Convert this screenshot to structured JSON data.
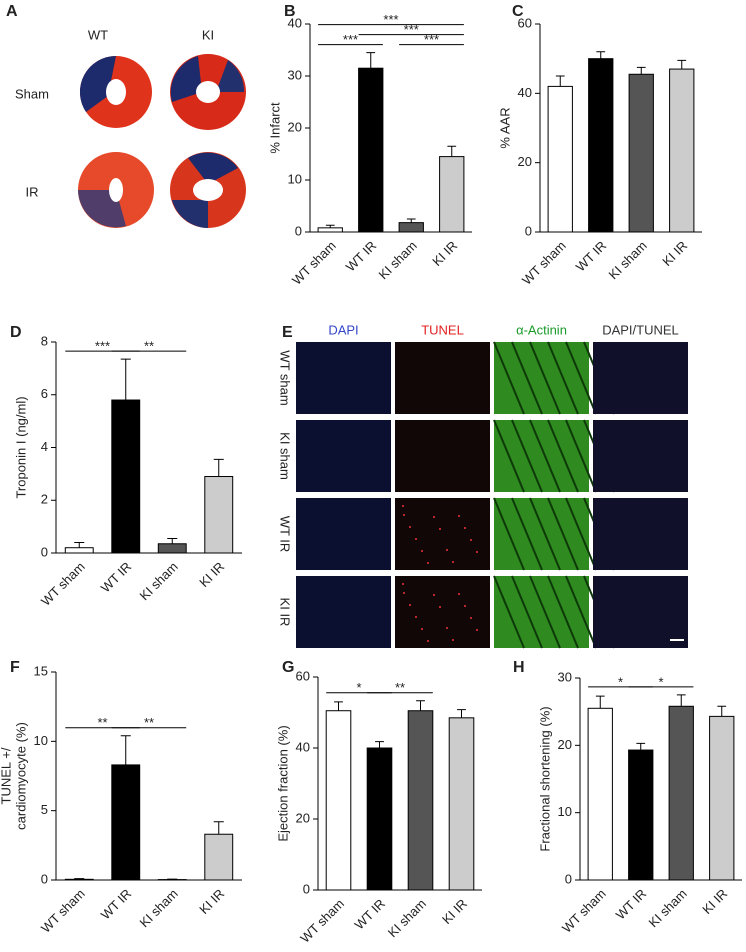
{
  "chart_data": [
    {
      "type": "bar",
      "label": "B",
      "ylabel": [
        "% Infarct"
      ],
      "categories": [
        "WT sham",
        "WT IR",
        "KI sham",
        "KI IR"
      ],
      "values": [
        0.8,
        31.5,
        1.8,
        14.5
      ],
      "errors": [
        0.5,
        3,
        0.7,
        2
      ],
      "colors": [
        "#ffffff",
        "#000000",
        "#555555",
        "#cccccc"
      ],
      "ylim": [
        0,
        40
      ],
      "yticks": [
        0,
        10,
        20,
        30,
        40
      ],
      "annotations": [
        {
          "text": "***",
          "pair": [
            0,
            1
          ]
        },
        {
          "text": "***",
          "pair": [
            0,
            3
          ]
        },
        {
          "text": "***",
          "pair": [
            1,
            3
          ]
        },
        {
          "text": "***",
          "pair": [
            2,
            3
          ]
        }
      ]
    },
    {
      "type": "bar",
      "label": "C",
      "ylabel": [
        "% AAR"
      ],
      "categories": [
        "WT sham",
        "WT IR",
        "KI sham",
        "KI IR"
      ],
      "values": [
        42,
        50,
        45.5,
        47
      ],
      "errors": [
        3,
        2,
        2,
        2.5
      ],
      "colors": [
        "#ffffff",
        "#000000",
        "#555555",
        "#cccccc"
      ],
      "ylim": [
        0,
        60
      ],
      "yticks": [
        0,
        20,
        40,
        60
      ],
      "annotations": []
    },
    {
      "type": "bar",
      "label": "D",
      "ylabel": [
        "Troponin I (ng/ml)"
      ],
      "categories": [
        "WT sham",
        "WT IR",
        "KI sham",
        "KI IR"
      ],
      "values": [
        0.2,
        5.8,
        0.35,
        2.9
      ],
      "errors": [
        0.2,
        1.55,
        0.2,
        0.65
      ],
      "colors": [
        "#ffffff",
        "#000000",
        "#555555",
        "#cccccc"
      ],
      "ylim": [
        0,
        8
      ],
      "yticks": [
        0,
        2,
        4,
        6,
        8
      ],
      "annotations": [
        {
          "text": "***",
          "pair": [
            0,
            1
          ]
        },
        {
          "text": "**",
          "pair": [
            1,
            2
          ]
        }
      ]
    },
    {
      "type": "bar",
      "label": "F",
      "ylabel": [
        "TUNEL +/",
        "cardiomyocyte (%)"
      ],
      "categories": [
        "WT sham",
        "WT IR",
        "KI sham",
        "KI IR"
      ],
      "values": [
        0.05,
        8.3,
        0.03,
        3.3
      ],
      "errors": [
        0.05,
        2.1,
        0.03,
        0.9
      ],
      "colors": [
        "#ffffff",
        "#000000",
        "#555555",
        "#cccccc"
      ],
      "ylim": [
        0,
        15
      ],
      "yticks": [
        0,
        5,
        10,
        15
      ],
      "annotations": [
        {
          "text": "**",
          "pair": [
            0,
            1
          ]
        },
        {
          "text": "**",
          "pair": [
            1,
            2
          ]
        }
      ]
    },
    {
      "type": "bar",
      "label": "G",
      "ylabel": [
        "Ejection fraction (%)"
      ],
      "categories": [
        "WT sham",
        "WT IR",
        "KI sham",
        "KI IR"
      ],
      "values": [
        50.5,
        40,
        50.5,
        48.5
      ],
      "errors": [
        2.5,
        1.8,
        2.8,
        2.3
      ],
      "colors": [
        "#ffffff",
        "#000000",
        "#555555",
        "#cccccc"
      ],
      "ylim": [
        0,
        60
      ],
      "yticks": [
        0,
        20,
        40,
        60
      ],
      "annotations": [
        {
          "text": "*",
          "pair": [
            0,
            1
          ]
        },
        {
          "text": "**",
          "pair": [
            1,
            2
          ]
        }
      ]
    },
    {
      "type": "bar",
      "label": "H",
      "ylabel": [
        "Fractional shortening (%)"
      ],
      "categories": [
        "WT sham",
        "WT IR",
        "KI sham",
        "KI IR"
      ],
      "values": [
        25.5,
        19.3,
        25.8,
        24.3
      ],
      "errors": [
        1.8,
        1,
        1.7,
        1.5
      ],
      "colors": [
        "#ffffff",
        "#000000",
        "#555555",
        "#cccccc"
      ],
      "ylim": [
        0,
        30
      ],
      "yticks": [
        0,
        10,
        20,
        30
      ],
      "annotations": [
        {
          "text": "*",
          "pair": [
            0,
            1
          ]
        },
        {
          "text": "*",
          "pair": [
            1,
            2
          ]
        }
      ]
    }
  ],
  "figure": {
    "panel_a": {
      "label": "A",
      "columns": [
        "WT",
        "KI"
      ],
      "rows": [
        "Sham",
        "IR"
      ]
    },
    "panel_e": {
      "label": "E",
      "columns": [
        {
          "text": "DAPI",
          "color": "#3345c8"
        },
        {
          "text": "TUNEL",
          "color": "#e02020"
        },
        {
          "text": "α-Actinin",
          "color": "#1a9a2a"
        },
        {
          "text": "DAPI/TUNEL",
          "color": "#333333"
        }
      ],
      "rows": [
        "WT sham",
        "KI sham",
        "WT IR",
        "KI IR"
      ]
    }
  }
}
